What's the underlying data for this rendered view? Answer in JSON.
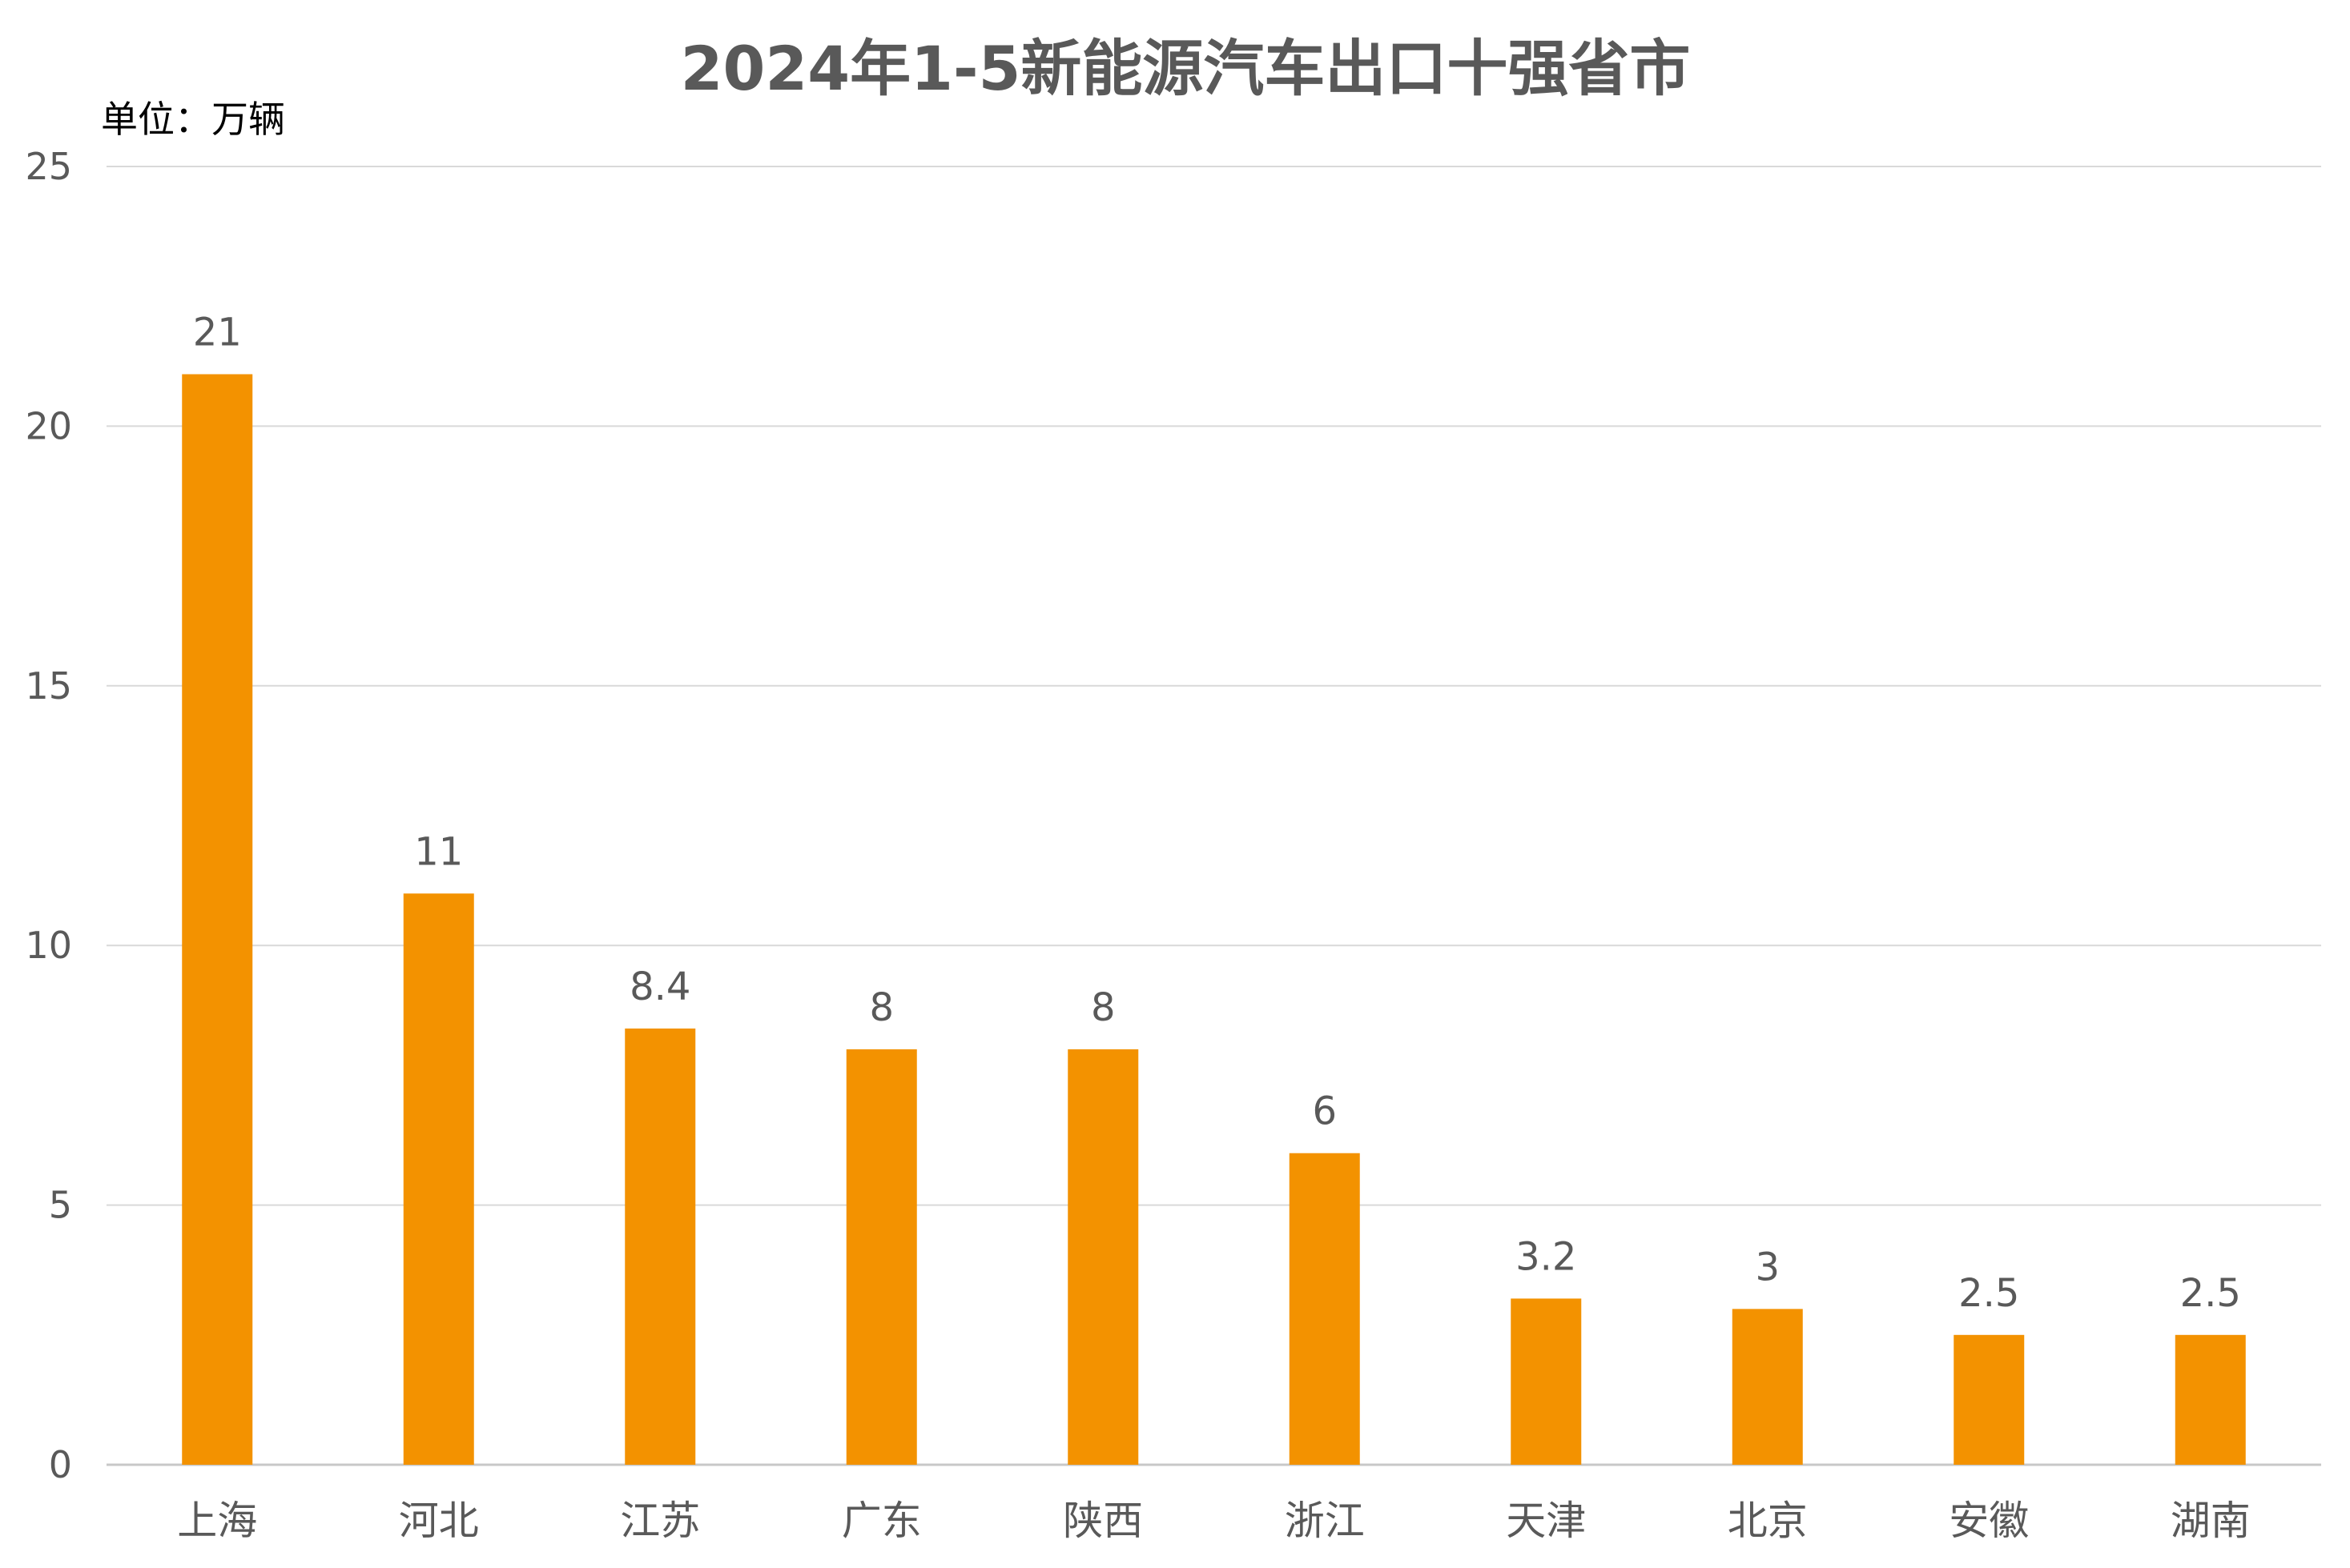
{
  "chart_data": {
    "type": "bar",
    "title": "2024年1-5新能源汽车出口十强省市",
    "unit_label": "单位：万辆",
    "xlabel": "",
    "ylabel": "",
    "categories": [
      "上海",
      "河北",
      "江苏",
      "广东",
      "陕西",
      "浙江",
      "天津",
      "北京",
      "安徽",
      "湖南"
    ],
    "values": [
      21,
      11,
      8.4,
      8,
      8,
      6,
      3.2,
      3,
      2.5,
      2.5
    ],
    "value_labels": [
      "21",
      "11",
      "8.4",
      "8",
      "8",
      "6",
      "3.2",
      "3",
      "2.5",
      "2.5"
    ],
    "ylim": [
      0,
      25
    ],
    "yticks": [
      0,
      5,
      10,
      15,
      20,
      25
    ],
    "ytick_labels": [
      "0",
      "5",
      "10",
      "15",
      "20",
      "25"
    ],
    "grid": true,
    "legend": "none",
    "colors": {
      "bar": "#F39200",
      "grid": "#D9D9D9",
      "axis": "#C8C8C8",
      "title": "#595959",
      "text": "#595959",
      "unit": "#000000"
    }
  }
}
